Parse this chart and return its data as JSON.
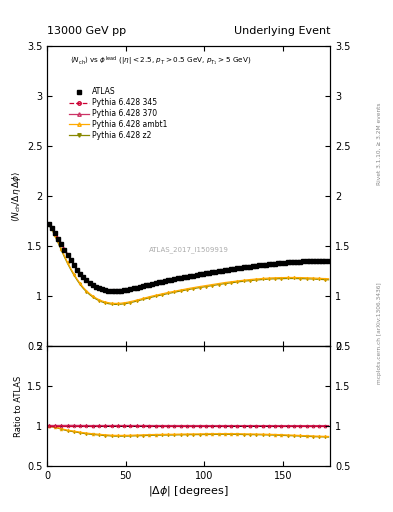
{
  "title_left": "13000 GeV pp",
  "title_right": "Underlying Event",
  "ylabel_main": "<N_ch / Delta_eta delta>",
  "ylabel_ratio": "Ratio to ATLAS",
  "annotation": "ATLAS_2017_I1509919",
  "right_label_top": "Rivet 3.1.10, ≥ 3.2M events",
  "right_label_bottom": "mcplots.cern.ch [arXiv:1306.3436]",
  "ylim_main": [
    0.5,
    3.5
  ],
  "ylim_ratio": [
    0.5,
    2.0
  ],
  "xlim": [
    0,
    180
  ],
  "colors": {
    "345": "#cc0033",
    "370": "#cc3366",
    "ambt1": "#ffaa00",
    "z2": "#888800"
  },
  "x_data": [
    1,
    3,
    5,
    7,
    9,
    11,
    13,
    15,
    17,
    19,
    21,
    23,
    25,
    27,
    29,
    31,
    33,
    35,
    37,
    39,
    41,
    43,
    45,
    47,
    49,
    51,
    53,
    55,
    57,
    59,
    61,
    63,
    65,
    67,
    69,
    71,
    73,
    75,
    77,
    79,
    81,
    83,
    85,
    87,
    89,
    91,
    93,
    95,
    97,
    99,
    101,
    103,
    105,
    107,
    109,
    111,
    113,
    115,
    117,
    119,
    121,
    123,
    125,
    127,
    129,
    131,
    133,
    135,
    137,
    139,
    141,
    143,
    145,
    147,
    149,
    151,
    153,
    155,
    157,
    159,
    161,
    163,
    165,
    167,
    169,
    171,
    173,
    175,
    177,
    179
  ],
  "atlas_y": [
    1.72,
    1.685,
    1.63,
    1.575,
    1.52,
    1.465,
    1.41,
    1.355,
    1.305,
    1.26,
    1.22,
    1.185,
    1.155,
    1.13,
    1.108,
    1.09,
    1.075,
    1.065,
    1.057,
    1.052,
    1.05,
    1.05,
    1.05,
    1.053,
    1.056,
    1.062,
    1.068,
    1.075,
    1.082,
    1.09,
    1.098,
    1.106,
    1.114,
    1.121,
    1.128,
    1.135,
    1.142,
    1.149,
    1.156,
    1.163,
    1.169,
    1.175,
    1.181,
    1.187,
    1.193,
    1.198,
    1.204,
    1.21,
    1.215,
    1.22,
    1.225,
    1.23,
    1.235,
    1.24,
    1.245,
    1.25,
    1.255,
    1.26,
    1.265,
    1.27,
    1.275,
    1.28,
    1.285,
    1.29,
    1.294,
    1.298,
    1.302,
    1.306,
    1.31,
    1.314,
    1.318,
    1.321,
    1.324,
    1.327,
    1.33,
    1.333,
    1.336,
    1.338,
    1.34,
    1.342,
    1.344,
    1.346,
    1.347,
    1.348,
    1.349,
    1.35,
    1.35,
    1.35,
    1.35,
    1.35
  ],
  "py345_y": [
    1.72,
    1.685,
    1.63,
    1.575,
    1.52,
    1.465,
    1.41,
    1.355,
    1.305,
    1.26,
    1.22,
    1.185,
    1.155,
    1.13,
    1.108,
    1.09,
    1.075,
    1.065,
    1.057,
    1.052,
    1.05,
    1.05,
    1.05,
    1.053,
    1.056,
    1.062,
    1.068,
    1.075,
    1.082,
    1.09,
    1.098,
    1.106,
    1.114,
    1.121,
    1.128,
    1.135,
    1.142,
    1.149,
    1.156,
    1.163,
    1.169,
    1.175,
    1.181,
    1.187,
    1.193,
    1.198,
    1.204,
    1.21,
    1.215,
    1.22,
    1.225,
    1.23,
    1.235,
    1.24,
    1.245,
    1.25,
    1.255,
    1.26,
    1.265,
    1.27,
    1.275,
    1.28,
    1.285,
    1.29,
    1.294,
    1.298,
    1.302,
    1.306,
    1.31,
    1.314,
    1.318,
    1.321,
    1.324,
    1.327,
    1.33,
    1.333,
    1.336,
    1.338,
    1.34,
    1.342,
    1.344,
    1.346,
    1.347,
    1.348,
    1.349,
    1.35,
    1.35,
    1.35,
    1.35,
    1.35
  ],
  "py370_y": [
    1.73,
    1.695,
    1.64,
    1.585,
    1.53,
    1.475,
    1.42,
    1.365,
    1.315,
    1.268,
    1.228,
    1.192,
    1.162,
    1.136,
    1.114,
    1.096,
    1.081,
    1.071,
    1.063,
    1.058,
    1.056,
    1.056,
    1.056,
    1.059,
    1.062,
    1.068,
    1.074,
    1.081,
    1.088,
    1.096,
    1.104,
    1.112,
    1.12,
    1.127,
    1.134,
    1.141,
    1.148,
    1.155,
    1.162,
    1.169,
    1.175,
    1.181,
    1.187,
    1.193,
    1.199,
    1.204,
    1.21,
    1.216,
    1.221,
    1.226,
    1.231,
    1.236,
    1.241,
    1.246,
    1.251,
    1.256,
    1.261,
    1.266,
    1.271,
    1.276,
    1.281,
    1.286,
    1.291,
    1.296,
    1.3,
    1.304,
    1.308,
    1.312,
    1.316,
    1.32,
    1.324,
    1.327,
    1.33,
    1.333,
    1.336,
    1.339,
    1.342,
    1.344,
    1.346,
    1.348,
    1.35,
    1.352,
    1.353,
    1.354,
    1.355,
    1.356,
    1.356,
    1.356,
    1.356,
    1.356
  ],
  "pyambt1_y": [
    1.72,
    1.675,
    1.61,
    1.54,
    1.47,
    1.4,
    1.335,
    1.275,
    1.22,
    1.17,
    1.125,
    1.085,
    1.052,
    1.024,
    1.0,
    0.98,
    0.963,
    0.95,
    0.94,
    0.933,
    0.928,
    0.926,
    0.926,
    0.928,
    0.932,
    0.937,
    0.944,
    0.951,
    0.959,
    0.967,
    0.976,
    0.984,
    0.992,
    1.0,
    1.007,
    1.014,
    1.021,
    1.028,
    1.035,
    1.041,
    1.047,
    1.054,
    1.06,
    1.066,
    1.072,
    1.078,
    1.083,
    1.089,
    1.094,
    1.099,
    1.104,
    1.109,
    1.114,
    1.119,
    1.124,
    1.129,
    1.134,
    1.138,
    1.142,
    1.146,
    1.15,
    1.154,
    1.157,
    1.161,
    1.164,
    1.167,
    1.17,
    1.172,
    1.175,
    1.177,
    1.179,
    1.181,
    1.182,
    1.183,
    1.184,
    1.184,
    1.185,
    1.185,
    1.185,
    1.184,
    1.184,
    1.183,
    1.182,
    1.181,
    1.18,
    1.178,
    1.177,
    1.175,
    1.174,
    1.172
  ],
  "pyz2_y": [
    1.71,
    1.665,
    1.6,
    1.53,
    1.46,
    1.39,
    1.325,
    1.265,
    1.21,
    1.16,
    1.115,
    1.075,
    1.042,
    1.014,
    0.99,
    0.97,
    0.953,
    0.94,
    0.93,
    0.923,
    0.918,
    0.916,
    0.916,
    0.918,
    0.922,
    0.927,
    0.934,
    0.941,
    0.949,
    0.957,
    0.966,
    0.974,
    0.982,
    0.99,
    0.997,
    1.004,
    1.011,
    1.018,
    1.025,
    1.031,
    1.037,
    1.044,
    1.05,
    1.056,
    1.062,
    1.068,
    1.073,
    1.079,
    1.084,
    1.089,
    1.094,
    1.099,
    1.104,
    1.109,
    1.114,
    1.119,
    1.124,
    1.128,
    1.132,
    1.136,
    1.14,
    1.144,
    1.147,
    1.151,
    1.154,
    1.157,
    1.16,
    1.162,
    1.165,
    1.167,
    1.169,
    1.171,
    1.172,
    1.173,
    1.174,
    1.174,
    1.175,
    1.175,
    1.175,
    1.174,
    1.174,
    1.173,
    1.172,
    1.171,
    1.17,
    1.168,
    1.167,
    1.165,
    1.164,
    1.162
  ]
}
